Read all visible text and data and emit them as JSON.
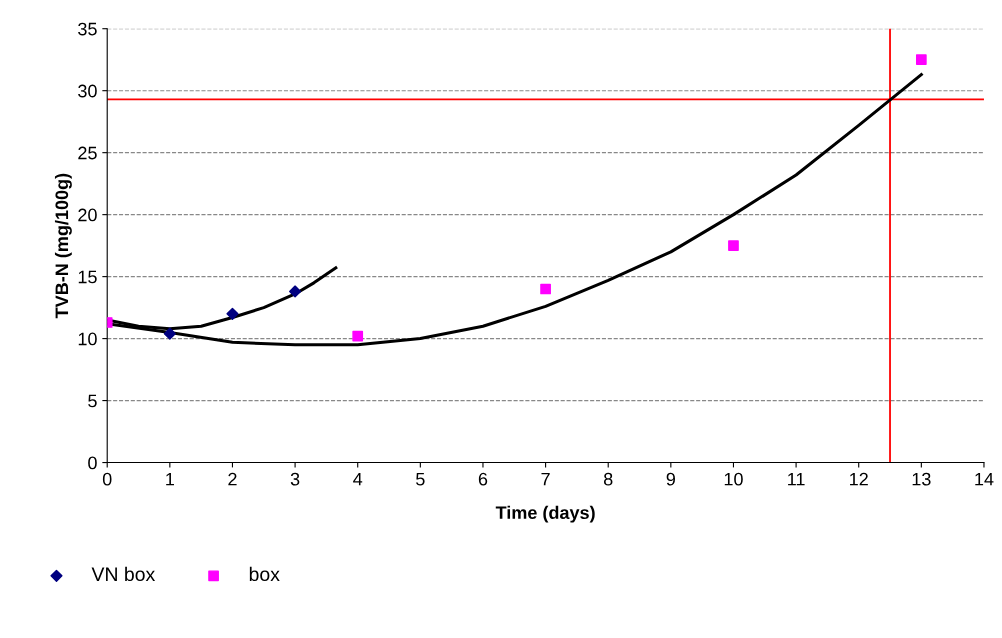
{
  "chart_data": {
    "type": "scatter",
    "xlabel": "Time (days)",
    "ylabel": "TVB-N (mg/100g)",
    "xlim": [
      0,
      14
    ],
    "xticks": [
      0,
      1,
      2,
      3,
      4,
      5,
      6,
      7,
      8,
      9,
      10,
      11,
      12,
      13,
      14
    ],
    "ylim": [
      0,
      35
    ],
    "yticks": [
      0,
      5,
      10,
      15,
      20,
      25,
      30,
      35
    ],
    "grid": "y",
    "legend": "bottom left",
    "series": [
      {
        "name": "VN box",
        "marker": "diamond",
        "color": "#000080",
        "x": [
          1,
          2,
          3
        ],
        "values": [
          10.4,
          12.0,
          13.8
        ]
      },
      {
        "name": "box",
        "marker": "square",
        "color": "#ff00ff",
        "x": [
          0,
          4,
          7,
          10,
          13
        ],
        "values": [
          11.3,
          10.2,
          14.0,
          17.5,
          32.5
        ]
      },
      {
        "type": "line",
        "color": "#000000",
        "x": [
          0,
          0.5,
          1,
          1.5,
          2,
          2.5,
          3,
          3.3,
          3.65
        ],
        "values": [
          11.5,
          11.0,
          10.8,
          11.0,
          11.7,
          12.5,
          13.6,
          14.5,
          15.7
        ]
      },
      {
        "type": "line",
        "color": "#000000",
        "x": [
          0,
          1,
          2,
          3,
          4,
          5,
          6,
          7,
          8,
          9,
          10,
          11,
          12,
          13
        ],
        "values": [
          11.2,
          10.5,
          9.7,
          9.5,
          9.5,
          10.0,
          11.0,
          12.6,
          14.7,
          17.0,
          20.0,
          23.2,
          27.2,
          31.3
        ]
      }
    ],
    "ref_lines": [
      {
        "axis": "y",
        "value": 29.3,
        "color": "#ff0000"
      },
      {
        "axis": "x",
        "value": 12.5,
        "color": "#ff0000"
      }
    ]
  }
}
